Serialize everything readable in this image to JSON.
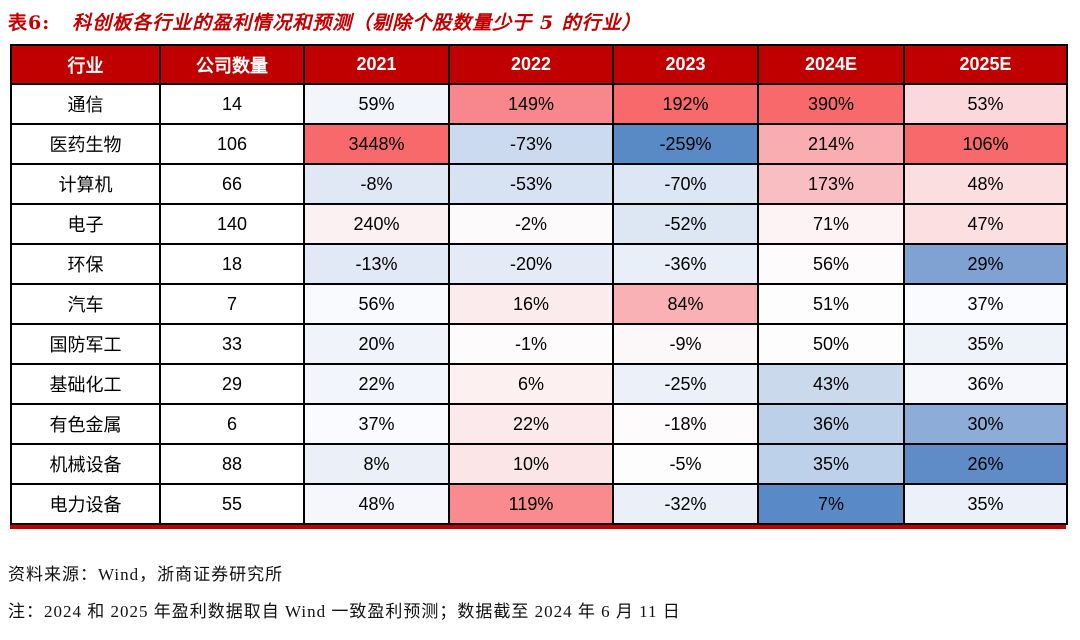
{
  "title": {
    "label": "表6:",
    "text": "科创板各行业的盈利情况和预测（剔除个股数量少于 5 的行业）"
  },
  "colors": {
    "header_bg": "#C00000",
    "header_text": "#FFFFFF",
    "title_text": "#C00000",
    "grid_border": "#000000",
    "bottom_rule": "#C00000",
    "scale_max_red": "#F8696B",
    "scale_mid_white": "#FCFCFF",
    "scale_min_blue": "#5A8AC6"
  },
  "table": {
    "headers": [
      "行业",
      "公司数量",
      "2021",
      "2022",
      "2023",
      "2024E",
      "2025E"
    ],
    "rows": [
      {
        "industry": "通信",
        "count": "14",
        "cells": [
          {
            "text": "59%",
            "bg": "#F2F6FB"
          },
          {
            "text": "149%",
            "bg": "#F7878C"
          },
          {
            "text": "192%",
            "bg": "#F8696B"
          },
          {
            "text": "390%",
            "bg": "#F8696B"
          },
          {
            "text": "53%",
            "bg": "#FBD8DB"
          }
        ]
      },
      {
        "industry": "医药生物",
        "count": "106",
        "cells": [
          {
            "text": "3448%",
            "bg": "#F8696B"
          },
          {
            "text": "-73%",
            "bg": "#CBDAEE"
          },
          {
            "text": "-259%",
            "bg": "#5A8AC6"
          },
          {
            "text": "214%",
            "bg": "#FAADB1"
          },
          {
            "text": "106%",
            "bg": "#F8696B"
          }
        ]
      },
      {
        "industry": "计算机",
        "count": "66",
        "cells": [
          {
            "text": "-8%",
            "bg": "#E0E8F5"
          },
          {
            "text": "-53%",
            "bg": "#D7E2F2"
          },
          {
            "text": "-70%",
            "bg": "#DCE6F4"
          },
          {
            "text": "173%",
            "bg": "#F9BEC1"
          },
          {
            "text": "48%",
            "bg": "#FBDEE0"
          }
        ]
      },
      {
        "industry": "电子",
        "count": "140",
        "cells": [
          {
            "text": "240%",
            "bg": "#FBF1F2"
          },
          {
            "text": "-2%",
            "bg": "#FDFAFB"
          },
          {
            "text": "-52%",
            "bg": "#DDE7F4"
          },
          {
            "text": "71%",
            "bg": "#FDF3F4"
          },
          {
            "text": "47%",
            "bg": "#FBDFE1"
          }
        ]
      },
      {
        "industry": "环保",
        "count": "18",
        "cells": [
          {
            "text": "-13%",
            "bg": "#E0E9F5"
          },
          {
            "text": "-20%",
            "bg": "#E5EBF6"
          },
          {
            "text": "-36%",
            "bg": "#E9EFF8"
          },
          {
            "text": "56%",
            "bg": "#FDFBFC"
          },
          {
            "text": "29%",
            "bg": "#7FA2D3"
          }
        ]
      },
      {
        "industry": "汽车",
        "count": "7",
        "cells": [
          {
            "text": "56%",
            "bg": "#F8FAFD"
          },
          {
            "text": "16%",
            "bg": "#FBEBED"
          },
          {
            "text": "84%",
            "bg": "#FAB1B5"
          },
          {
            "text": "51%",
            "bg": "#FEFDFD"
          },
          {
            "text": "37%",
            "bg": "#FAFBFE"
          }
        ]
      },
      {
        "industry": "国防军工",
        "count": "33",
        "cells": [
          {
            "text": "20%",
            "bg": "#F0F4FA"
          },
          {
            "text": "-1%",
            "bg": "#FDFBFC"
          },
          {
            "text": "-9%",
            "bg": "#FCF7F8"
          },
          {
            "text": "50%",
            "bg": "#FEFDFD"
          },
          {
            "text": "35%",
            "bg": "#EEF2F9"
          }
        ]
      },
      {
        "industry": "基础化工",
        "count": "29",
        "cells": [
          {
            "text": "22%",
            "bg": "#F2F5FB"
          },
          {
            "text": "6%",
            "bg": "#FCF0F1"
          },
          {
            "text": "-25%",
            "bg": "#ECF1F9"
          },
          {
            "text": "43%",
            "bg": "#CBD9ED"
          },
          {
            "text": "36%",
            "bg": "#F5F7FC"
          }
        ]
      },
      {
        "industry": "有色金属",
        "count": "6",
        "cells": [
          {
            "text": "37%",
            "bg": "#FAFBFE"
          },
          {
            "text": "22%",
            "bg": "#FBE9EB"
          },
          {
            "text": "-18%",
            "bg": "#FDFBFC"
          },
          {
            "text": "36%",
            "bg": "#BDD0E9"
          },
          {
            "text": "30%",
            "bg": "#8EACD8"
          }
        ]
      },
      {
        "industry": "机械设备",
        "count": "88",
        "cells": [
          {
            "text": "8%",
            "bg": "#EAEFF8"
          },
          {
            "text": "10%",
            "bg": "#FBE5E7"
          },
          {
            "text": "-5%",
            "bg": "#FEFDFE"
          },
          {
            "text": "35%",
            "bg": "#BED1EA"
          },
          {
            "text": "26%",
            "bg": "#5F8CC7"
          }
        ]
      },
      {
        "industry": "电力设备",
        "count": "55",
        "cells": [
          {
            "text": "48%",
            "bg": "#F5F7FC"
          },
          {
            "text": "119%",
            "bg": "#F98A8D"
          },
          {
            "text": "-32%",
            "bg": "#EAEFF8"
          },
          {
            "text": "7%",
            "bg": "#5A8AC6"
          },
          {
            "text": "35%",
            "bg": "#EBF0F9"
          }
        ]
      }
    ]
  },
  "footer": {
    "source": "资料来源：Wind，浙商证券研究所",
    "note": "注：2024 和 2025 年盈利数据取自 Wind 一致盈利预测；数据截至 2024 年 6 月 11 日"
  },
  "chart_data": {
    "type": "heatmap",
    "title": "表6: 科创板各行业的盈利情况和预测（剔除个股数量少于 5 的行业）",
    "unit": "%",
    "columns": [
      "2021",
      "2022",
      "2023",
      "2024E",
      "2025E"
    ],
    "rows": [
      "通信",
      "医药生物",
      "计算机",
      "电子",
      "环保",
      "汽车",
      "国防军工",
      "基础化工",
      "有色金属",
      "机械设备",
      "电力设备"
    ],
    "company_counts": [
      14,
      106,
      66,
      140,
      18,
      7,
      33,
      29,
      6,
      88,
      55
    ],
    "values_pct": [
      [
        59,
        149,
        192,
        390,
        53
      ],
      [
        3448,
        -73,
        -259,
        214,
        106
      ],
      [
        -8,
        -53,
        -70,
        173,
        48
      ],
      [
        240,
        -2,
        -52,
        71,
        47
      ],
      [
        -13,
        -20,
        -36,
        56,
        29
      ],
      [
        56,
        16,
        84,
        51,
        37
      ],
      [
        20,
        -1,
        -9,
        50,
        35
      ],
      [
        22,
        6,
        -25,
        43,
        36
      ],
      [
        37,
        22,
        -18,
        36,
        30
      ],
      [
        8,
        10,
        -5,
        35,
        26
      ],
      [
        48,
        119,
        -32,
        7,
        35
      ]
    ],
    "colorscale": "per-column 3-color scale: blue #5A8AC6 (min) → white #FCFCFF (mid) → red #F8696B (max)",
    "legend_position": "none",
    "grid": true
  }
}
